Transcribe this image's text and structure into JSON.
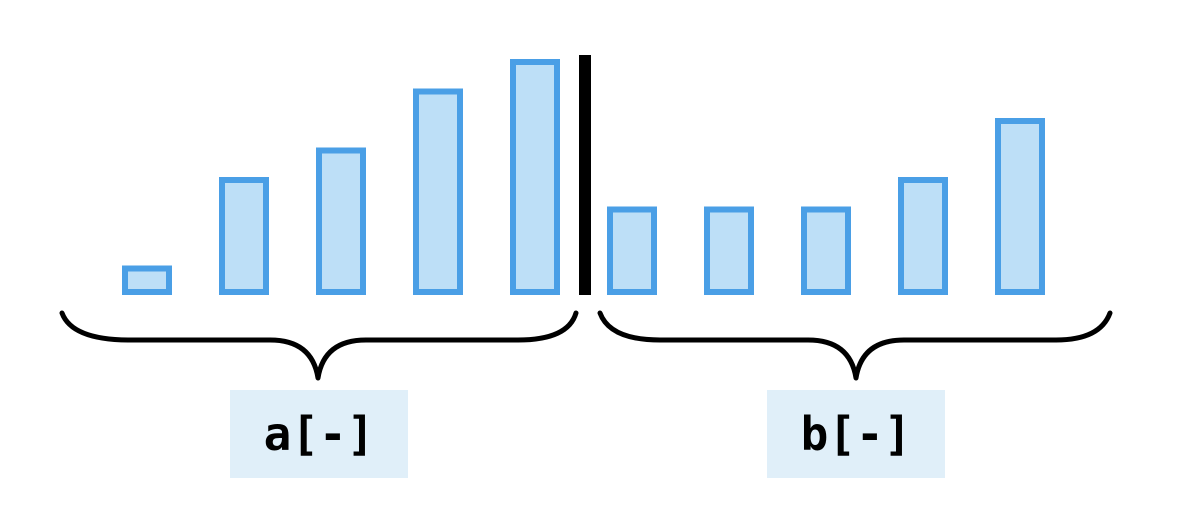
{
  "groups": [
    {
      "name": "a",
      "label": "a[-]",
      "values": [
        1,
        4,
        5,
        7,
        8
      ]
    },
    {
      "name": "b",
      "label": "b[-]",
      "values": [
        3,
        3,
        3,
        4,
        6
      ]
    }
  ],
  "colors": {
    "bar_fill": "#bddff7",
    "bar_stroke": "#4a9fe6",
    "label_background": "#e0eff9",
    "divider": "#000000"
  }
}
